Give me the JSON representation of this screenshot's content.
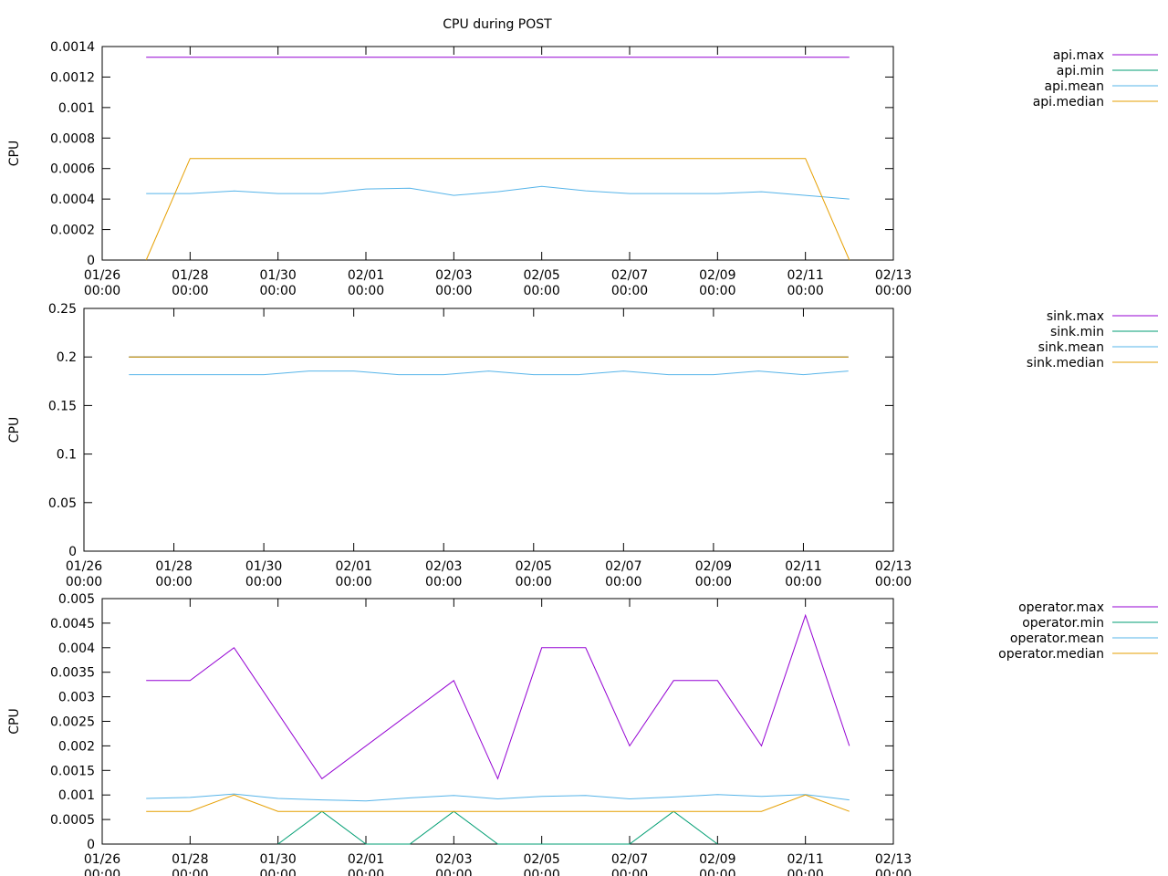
{
  "chart_data": {
    "type": "line",
    "title": "CPU during POST",
    "x_ticks": [
      "01/26\n00:00",
      "01/28\n00:00",
      "01/30\n00:00",
      "02/01\n00:00",
      "02/03\n00:00",
      "02/05\n00:00",
      "02/07\n00:00",
      "02/09\n00:00",
      "02/11\n00:00",
      "02/13\n00:00"
    ],
    "xlim": [
      0,
      18
    ],
    "panels": [
      {
        "ylabel": "CPU",
        "ylim": [
          0,
          0.0014
        ],
        "y_ticks": [
          "0",
          "0.0002",
          "0.0004",
          "0.0006",
          "0.0008",
          "0.001",
          "0.0012",
          "0.0014"
        ],
        "y_tick_values": [
          0,
          0.0002,
          0.0004,
          0.0006,
          0.0008,
          0.001,
          0.0012,
          0.0014
        ],
        "series": [
          {
            "name": "api.max",
            "color": "#9400d3",
            "x": [
              1,
              17
            ],
            "values": [
              0.00133,
              0.00133
            ]
          },
          {
            "name": "api.min",
            "color": "#009e73",
            "x": [],
            "values": []
          },
          {
            "name": "api.mean",
            "color": "#56b4e9",
            "x": [
              1,
              2,
              3,
              4,
              5,
              6,
              7,
              8,
              9,
              10,
              11,
              12,
              13,
              14,
              15,
              16,
              17
            ],
            "values": [
              0.000436,
              0.000436,
              0.000453,
              0.000436,
              0.000436,
              0.000466,
              0.000471,
              0.000424,
              0.000448,
              0.000483,
              0.000454,
              0.000436,
              0.000436,
              0.000436,
              0.000448,
              0.000424,
              0.0004
            ]
          },
          {
            "name": "api.median",
            "color": "#e69f00",
            "x": [
              1,
              2,
              16,
              17
            ],
            "values": [
              0,
              0.000666,
              0.000666,
              0
            ]
          }
        ]
      },
      {
        "ylabel": "CPU",
        "ylim": [
          0,
          0.25
        ],
        "y_ticks": [
          "0",
          "0.05",
          "0.1",
          "0.15",
          "0.2",
          "0.25"
        ],
        "y_tick_values": [
          0,
          0.05,
          0.1,
          0.15,
          0.2,
          0.25
        ],
        "series": [
          {
            "name": "sink.max",
            "color": "#9400d3",
            "x": [
              1,
              17
            ],
            "values": [
              0.2,
              0.2
            ]
          },
          {
            "name": "sink.min",
            "color": "#009e73",
            "x": [
              1,
              17
            ],
            "values": [
              0.2,
              0.2
            ]
          },
          {
            "name": "sink.mean",
            "color": "#56b4e9",
            "x": [
              1,
              2,
              3,
              4,
              5,
              6,
              7,
              8,
              9,
              10,
              11,
              12,
              13,
              14,
              15,
              16,
              17
            ],
            "values": [
              0.1818,
              0.1818,
              0.1818,
              0.1818,
              0.1855,
              0.1855,
              0.1818,
              0.1818,
              0.1855,
              0.1818,
              0.1818,
              0.1855,
              0.1818,
              0.1818,
              0.1855,
              0.1818,
              0.1855
            ]
          },
          {
            "name": "sink.median",
            "color": "#e69f00",
            "x": [
              1,
              17
            ],
            "values": [
              0.2,
              0.2
            ]
          }
        ]
      },
      {
        "ylabel": "CPU",
        "ylim": [
          0,
          0.005
        ],
        "y_ticks": [
          "0",
          "0.0005",
          "0.001",
          "0.0015",
          "0.002",
          "0.0025",
          "0.003",
          "0.0035",
          "0.004",
          "0.0045",
          "0.005"
        ],
        "y_tick_values": [
          0,
          0.0005,
          0.001,
          0.0015,
          0.002,
          0.0025,
          0.003,
          0.0035,
          0.004,
          0.0045,
          0.005
        ],
        "series": [
          {
            "name": "operator.max",
            "color": "#9400d3",
            "x": [
              1,
              2,
              3,
              5,
              8,
              9,
              10,
              11,
              12,
              13,
              14,
              15,
              16,
              17
            ],
            "values": [
              0.00333,
              0.00333,
              0.004,
              0.00133,
              0.00333,
              0.00133,
              0.004,
              0.004,
              0.002,
              0.00333,
              0.00333,
              0.002,
              0.00466,
              0.002
            ]
          },
          {
            "name": "operator.min",
            "color": "#009e73",
            "x": [
              4,
              5,
              6,
              7,
              8,
              9,
              12,
              13,
              14
            ],
            "values": [
              0,
              0.000666,
              0,
              0,
              0.000666,
              0,
              0,
              0.000666,
              0
            ]
          },
          {
            "name": "operator.mean",
            "color": "#56b4e9",
            "x": [
              1,
              2,
              3,
              4,
              5,
              6,
              7,
              8,
              9,
              10,
              11,
              12,
              13,
              14,
              15,
              16,
              17
            ],
            "values": [
              0.00093,
              0.00095,
              0.00102,
              0.00093,
              0.0009,
              0.00088,
              0.00094,
              0.00099,
              0.00092,
              0.00097,
              0.00099,
              0.00092,
              0.00096,
              0.00101,
              0.00097,
              0.00101,
              0.0009
            ]
          },
          {
            "name": "operator.median",
            "color": "#e69f00",
            "x": [
              1,
              2,
              3,
              4,
              5,
              6,
              7,
              8,
              9,
              10,
              11,
              12,
              13,
              14,
              15,
              16,
              17
            ],
            "values": [
              0.000666,
              0.000666,
              0.001,
              0.000666,
              0.000666,
              0.000666,
              0.000666,
              0.000666,
              0.000666,
              0.000666,
              0.000666,
              0.000666,
              0.000666,
              0.000666,
              0.000666,
              0.001,
              0.000666
            ]
          }
        ]
      }
    ]
  }
}
